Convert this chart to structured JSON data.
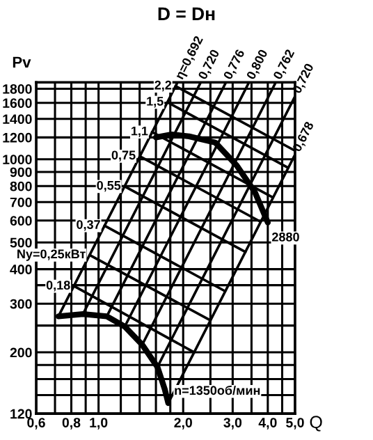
{
  "chart_data": {
    "type": "line",
    "title": "D = Dн",
    "xlabel": "Q",
    "ylabel": "Pv",
    "log": "xy",
    "grid": true,
    "marker": "none",
    "line_style": "solid",
    "xlim": [
      0.6,
      5.0
    ],
    "ylim": [
      120,
      1900
    ],
    "xticks": [
      {
        "value": 0.6,
        "label": "0,6"
      },
      {
        "value": 0.7,
        "label": null
      },
      {
        "value": 0.8,
        "label": "0,8"
      },
      {
        "value": 0.9,
        "label": null
      },
      {
        "value": 1.0,
        "label": "1,0"
      },
      {
        "value": 1.2,
        "label": null
      },
      {
        "value": 1.4,
        "label": null
      },
      {
        "value": 1.6,
        "label": null
      },
      {
        "value": 1.8,
        "label": null
      },
      {
        "value": 2.0,
        "label": "2,0"
      },
      {
        "value": 2.5,
        "label": null
      },
      {
        "value": 3.0,
        "label": "3,0"
      },
      {
        "value": 3.5,
        "label": null
      },
      {
        "value": 4.0,
        "label": "4,0"
      },
      {
        "value": 4.5,
        "label": null
      },
      {
        "value": 5.0,
        "label": "5,0"
      }
    ],
    "yticks": [
      120,
      {
        "value": 140,
        "label": null
      },
      {
        "value": 160,
        "label": null
      },
      {
        "value": 180,
        "label": null
      },
      200,
      {
        "value": 250,
        "label": null
      },
      300,
      {
        "value": 350,
        "label": null
      },
      400,
      500,
      600,
      700,
      800,
      900,
      1000,
      1200,
      1400,
      1600,
      1800
    ],
    "series": [
      {
        "name": "2880",
        "color": "#000000",
        "x": [
          1.6,
          1.82,
          2.1,
          2.6,
          3.1,
          3.6,
          4.0
        ],
        "values": [
          1200,
          1230,
          1210,
          1150,
          950,
          760,
          590
        ]
      },
      {
        "name": "n=1350об/мин",
        "color": "#000000",
        "x": [
          0.72,
          0.88,
          1.07,
          1.24,
          1.43,
          1.62,
          1.72,
          1.77
        ],
        "values": [
          270,
          275,
          270,
          248,
          213,
          177,
          147,
          131
        ]
      },
      {
        "name": "η=0,692",
        "color": "#000000",
        "x": [
          0.72,
          1.91
        ],
        "values": [
          270,
          1900
        ]
      },
      {
        "name": "0,720",
        "color": "#000000",
        "x": [
          0.88,
          2.31
        ],
        "values": [
          275,
          1900
        ]
      },
      {
        "name": "0,776",
        "color": "#000000",
        "x": [
          1.07,
          2.84
        ],
        "values": [
          270,
          1900
        ]
      },
      {
        "name": "0,800",
        "color": "#000000",
        "x": [
          1.24,
          3.43
        ],
        "values": [
          248,
          1900
        ]
      },
      {
        "name": "0,762",
        "color": "#000000",
        "x": [
          1.43,
          4.27
        ],
        "values": [
          213,
          1900
        ]
      },
      {
        "name": "0,720",
        "color": "#000000",
        "x": [
          1.62,
          5.0
        ],
        "values": [
          177,
          1690
        ]
      },
      {
        "name": "0,678",
        "color": "#000000",
        "x": [
          1.77,
          5.0
        ],
        "values": [
          131,
          1040
        ]
      },
      {
        "name": "0,18",
        "color": "#000000",
        "x": [
          0.82,
          2.19
        ],
        "values": [
          347,
          200
        ]
      },
      {
        "name": "Ny=0,25кВт",
        "color": "#000000",
        "x": [
          0.93,
          2.5
        ],
        "values": [
          450,
          261
        ]
      },
      {
        "name": "0,37",
        "color": "#000000",
        "x": [
          1.05,
          2.82
        ],
        "values": [
          575,
          333
        ]
      },
      {
        "name": "0,55",
        "color": "#000000",
        "x": [
          1.24,
          3.33
        ],
        "values": [
          797,
          462
        ]
      },
      {
        "name": "0,75",
        "color": "#000000",
        "x": [
          1.4,
          3.77
        ],
        "values": [
          1026,
          594
        ]
      },
      {
        "name": "1,1",
        "color": "#000000",
        "x": [
          1.55,
          4.17
        ],
        "values": [
          1255,
          727
        ]
      },
      {
        "name": "1,5",
        "color": "#000000",
        "x": [
          1.76,
          4.72
        ],
        "values": [
          1608,
          932
        ]
      },
      {
        "name": "2,2",
        "color": "#000000",
        "x": [
          1.88,
          5.0
        ],
        "values": [
          1840,
          1074
        ]
      }
    ]
  }
}
